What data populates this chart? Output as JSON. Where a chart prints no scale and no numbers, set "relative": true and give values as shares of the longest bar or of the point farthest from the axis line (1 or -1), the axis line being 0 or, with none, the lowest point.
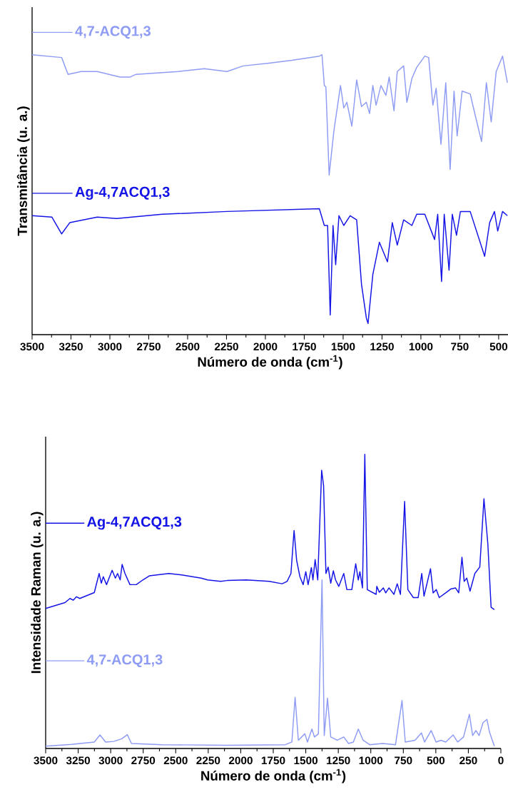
{
  "chart_data": [
    {
      "type": "line",
      "relative": true,
      "legend": "top left",
      "xlabel": "Número de onda (cm$^{-1}$)",
      "ylabel": "Transmitância (u. a.)",
      "xlim": [
        3500,
        440
      ],
      "xticks": [
        3500,
        3250,
        3000,
        2750,
        2500,
        2250,
        2000,
        1750,
        1500,
        1250,
        1000,
        750,
        500
      ],
      "series": [
        {
          "name": "4,7-ACQ1,3",
          "color": "#8e9cf4",
          "x": [
            3500,
            3310,
            3269,
            3185,
            3081,
            2935,
            2872,
            2831,
            2560,
            2393,
            2247,
            2143,
            1976,
            1830,
            1653,
            1636,
            1621,
            1611,
            1590,
            1559,
            1517,
            1496,
            1476,
            1444,
            1413,
            1382,
            1351,
            1330,
            1309,
            1288,
            1257,
            1225,
            1204,
            1173,
            1152,
            1111,
            1090,
            1058,
            1027,
            975,
            950,
            923,
            902,
            871,
            840,
            812,
            787,
            767,
            735,
            683,
            662,
            610,
            579,
            548,
            516,
            475,
            444
          ],
          "values": [
            1.0,
            0.99,
            0.93,
            0.94,
            0.94,
            0.92,
            0.92,
            0.93,
            0.94,
            0.95,
            0.94,
            0.96,
            0.97,
            0.98,
            0.995,
            1.0,
            0.89,
            0.885,
            0.57,
            0.73,
            0.89,
            0.81,
            0.83,
            0.745,
            0.91,
            0.815,
            0.83,
            0.79,
            0.89,
            0.82,
            0.89,
            0.855,
            0.92,
            0.8,
            0.94,
            0.96,
            0.83,
            0.915,
            0.955,
            0.995,
            0.99,
            0.82,
            0.88,
            0.68,
            0.9,
            0.59,
            0.87,
            0.71,
            0.87,
            0.86,
            0.81,
            0.69,
            0.9,
            0.76,
            0.94,
            0.995,
            0.9
          ]
        },
        {
          "name": "Ag-4,7ACQ1,3",
          "color": "#1414e6",
          "x": [
            3500,
            3373,
            3310,
            3258,
            3081,
            2956,
            2664,
            2247,
            1653,
            1621,
            1600,
            1583,
            1565,
            1548,
            1527,
            1496,
            1455,
            1413,
            1382,
            1351,
            1340,
            1309,
            1267,
            1215,
            1184,
            1152,
            1111,
            1058,
            1027,
            975,
            912,
            892,
            867,
            850,
            819,
            798,
            771,
            746,
            683,
            590,
            558,
            527,
            506,
            475,
            444
          ],
          "values": [
            0.425,
            0.42,
            0.36,
            0.4,
            0.42,
            0.415,
            0.43,
            0.44,
            0.45,
            0.39,
            0.39,
            0.07,
            0.39,
            0.25,
            0.425,
            0.39,
            0.425,
            0.41,
            0.18,
            0.06,
            0.04,
            0.215,
            0.33,
            0.26,
            0.4,
            0.32,
            0.41,
            0.39,
            0.43,
            0.43,
            0.34,
            0.43,
            0.19,
            0.43,
            0.23,
            0.43,
            0.355,
            0.44,
            0.44,
            0.28,
            0.4,
            0.44,
            0.37,
            0.44,
            0.425
          ]
        }
      ]
    },
    {
      "type": "line",
      "relative": true,
      "legend": "left",
      "xlabel": "Número de onda (cm$^{-1}$)",
      "ylabel": "Intensidade Raman (u. a.)",
      "xlim": [
        3500,
        0
      ],
      "xticks": [
        3500,
        3250,
        3000,
        2750,
        2500,
        2250,
        2000,
        1750,
        1500,
        1250,
        1000,
        750,
        500,
        250,
        0
      ],
      "series": [
        {
          "name": "Ag-4,7ACQ1,3",
          "color": "#1414e6",
          "x": [
            3500,
            3351,
            3313,
            3288,
            3263,
            3238,
            3126,
            3089,
            3072,
            3057,
            3032,
            2989,
            2964,
            2947,
            2927,
            2912,
            2890,
            2852,
            2803,
            2753,
            2703,
            2553,
            2454,
            2304,
            2255,
            2155,
            2105,
            1956,
            1781,
            1682,
            1644,
            1614,
            1590,
            1570,
            1545,
            1520,
            1500,
            1482,
            1457,
            1445,
            1428,
            1408,
            1378,
            1363,
            1345,
            1328,
            1308,
            1288,
            1271,
            1246,
            1208,
            1184,
            1146,
            1116,
            1096,
            1084,
            1064,
            1046,
            1027,
            959,
            954,
            934,
            904,
            885,
            860,
            822,
            797,
            772,
            740,
            715,
            673,
            636,
            608,
            591,
            541,
            521,
            496,
            474,
            424,
            386,
            349,
            324,
            299,
            282,
            262,
            237,
            200,
            162,
            130,
            100,
            75,
            50
          ],
          "values": [
            0.476,
            0.496,
            0.51,
            0.504,
            0.516,
            0.51,
            0.53,
            0.595,
            0.562,
            0.584,
            0.557,
            0.606,
            0.579,
            0.595,
            0.573,
            0.626,
            0.595,
            0.557,
            0.557,
            0.573,
            0.587,
            0.595,
            0.59,
            0.579,
            0.573,
            0.568,
            0.571,
            0.573,
            0.568,
            0.56,
            0.568,
            0.595,
            0.741,
            0.639,
            0.584,
            0.557,
            0.601,
            0.557,
            0.615,
            0.573,
            0.642,
            0.573,
            0.946,
            0.893,
            0.595,
            0.617,
            0.562,
            0.604,
            0.573,
            0.551,
            0.595,
            0.54,
            0.54,
            0.628,
            0.573,
            0.601,
            0.546,
            1.0,
            0.54,
            0.524,
            0.551,
            0.531,
            0.546,
            0.529,
            0.546,
            0.524,
            0.56,
            0.524,
            0.84,
            0.54,
            0.513,
            0.513,
            0.595,
            0.518,
            0.611,
            0.529,
            0.54,
            0.513,
            0.529,
            0.542,
            0.546,
            0.529,
            0.65,
            0.568,
            0.579,
            0.535,
            0.595,
            0.617,
            0.849,
            0.695,
            0.48,
            0.472
          ]
        },
        {
          "name": "4,7-ACQ1,3",
          "color": "#8e9cf4",
          "x": [
            3500,
            3301,
            3126,
            3082,
            3039,
            2977,
            2915,
            2872,
            2840,
            2603,
            2105,
            1657,
            1607,
            1582,
            1557,
            1507,
            1487,
            1453,
            1433,
            1403,
            1375,
            1358,
            1333,
            1308,
            1258,
            1208,
            1171,
            1134,
            1096,
            1059,
            1009,
            909,
            810,
            760,
            735,
            660,
            611,
            586,
            536,
            498,
            461,
            424,
            367,
            332,
            287,
            242,
            217,
            192,
            167,
            137,
            107,
            87,
            50
          ],
          "values": [
            0.008,
            0.014,
            0.022,
            0.046,
            0.022,
            0.024,
            0.033,
            0.047,
            0.017,
            0.013,
            0.011,
            0.013,
            0.022,
            0.174,
            0.028,
            0.05,
            0.022,
            0.066,
            0.039,
            0.05,
            0.573,
            0.044,
            0.171,
            0.039,
            0.028,
            0.039,
            0.017,
            0.022,
            0.066,
            0.028,
            0.013,
            0.017,
            0.013,
            0.163,
            0.022,
            0.028,
            0.053,
            0.022,
            0.061,
            0.022,
            0.028,
            0.022,
            0.046,
            0.022,
            0.039,
            0.116,
            0.044,
            0.061,
            0.044,
            0.088,
            0.099,
            0.055,
            0.008
          ]
        }
      ]
    }
  ]
}
